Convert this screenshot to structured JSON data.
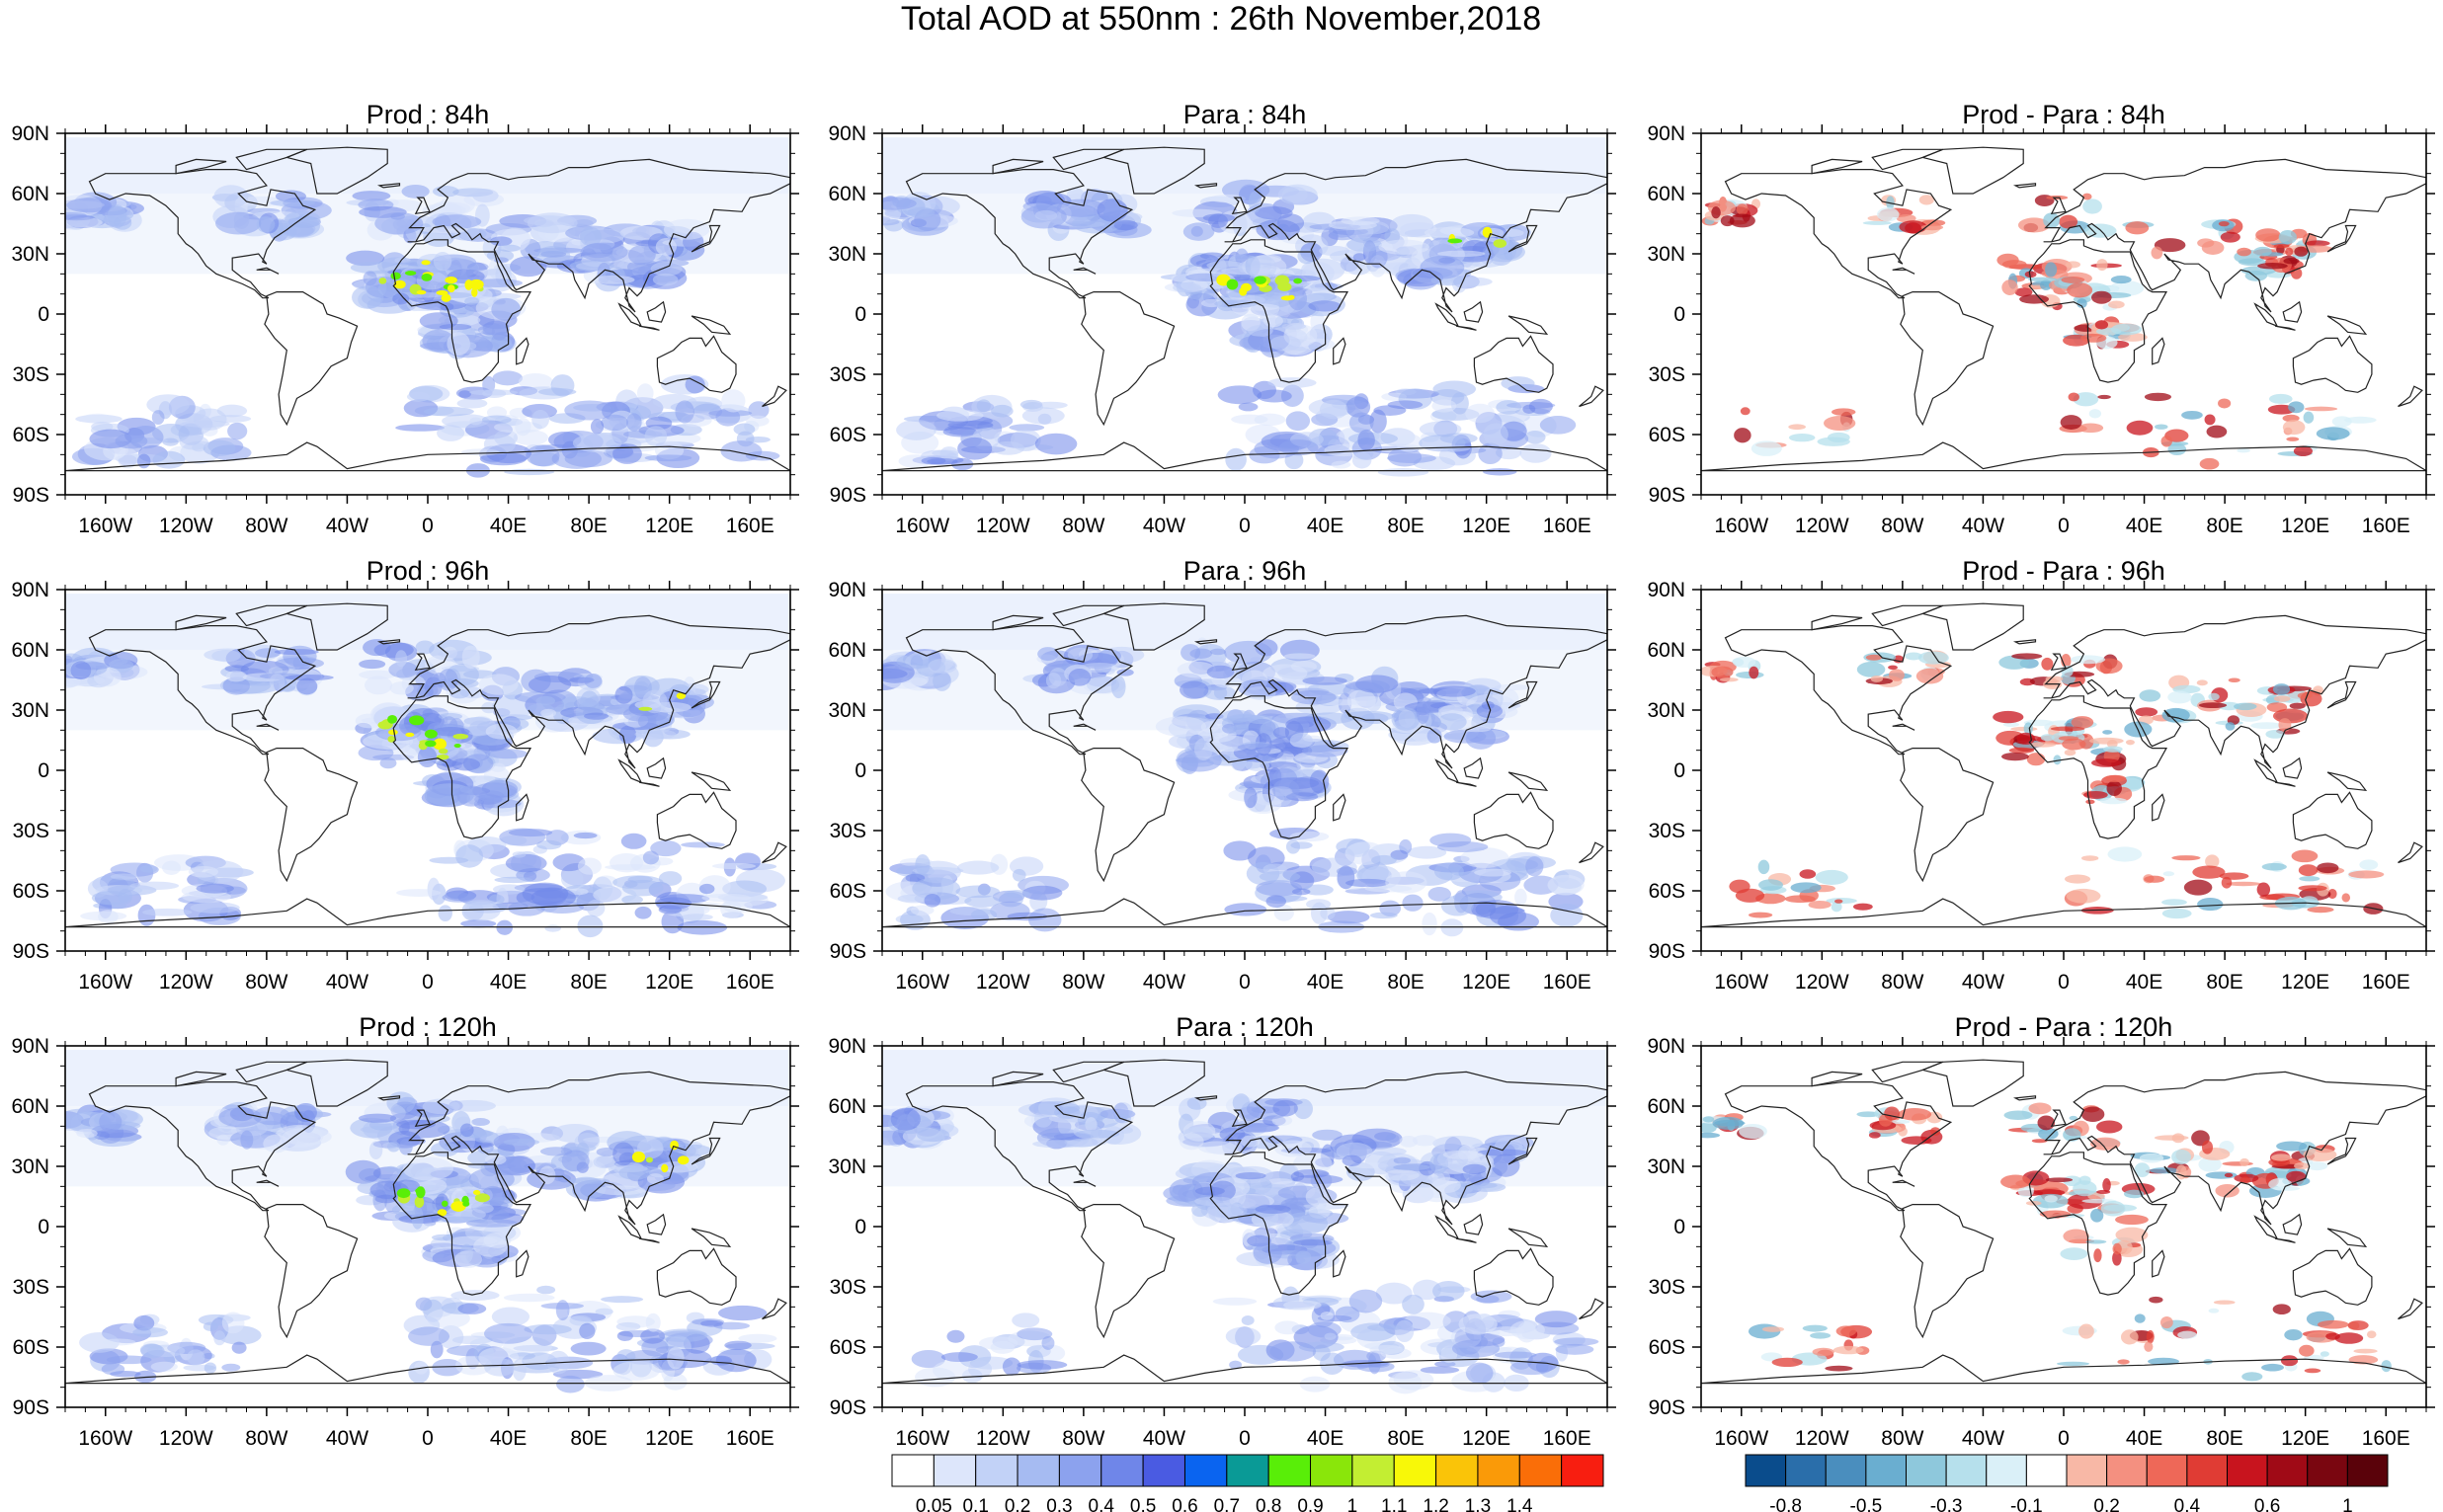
{
  "title": "Total AOD at 550nm : 26th November,2018",
  "lat_labels": [
    "90N",
    "60N",
    "30N",
    "0",
    "30S",
    "60S",
    "90S"
  ],
  "lon_labels": [
    "160W",
    "120W",
    "80W",
    "40W",
    "0",
    "40E",
    "80E",
    "120E",
    "160E"
  ],
  "lon_values": [
    -160,
    -120,
    -80,
    -40,
    0,
    40,
    80,
    120,
    160
  ],
  "lat_values": [
    90,
    60,
    30,
    0,
    -30,
    -60,
    -90
  ],
  "panels": [
    {
      "title": "Prod : 84h",
      "kind": "aod"
    },
    {
      "title": "Para : 84h",
      "kind": "aod"
    },
    {
      "title": "Prod - Para : 84h",
      "kind": "diff"
    },
    {
      "title": "Prod : 96h",
      "kind": "aod"
    },
    {
      "title": "Para : 96h",
      "kind": "aod"
    },
    {
      "title": "Prod - Para : 96h",
      "kind": "diff"
    },
    {
      "title": "Prod : 120h",
      "kind": "aod"
    },
    {
      "title": "Para : 120h",
      "kind": "aod"
    },
    {
      "title": "Prod - Para : 120h",
      "kind": "diff"
    }
  ],
  "aod_colorbar": {
    "labels": [
      "0.05",
      "0.1",
      "0.2",
      "0.3",
      "0.4",
      "0.5",
      "0.6",
      "0.7",
      "0.8",
      "0.9",
      "1",
      "1.1",
      "1.2",
      "1.3",
      "1.4"
    ],
    "colors": [
      "#ffffff",
      "#dde6fb",
      "#c2d2f7",
      "#a6bbf2",
      "#8ca2ee",
      "#6f86e9",
      "#4a5be2",
      "#0a64f0",
      "#0a9a96",
      "#59ee08",
      "#8ae60a",
      "#c3ee32",
      "#f8f808",
      "#fac408",
      "#fa9a08",
      "#fa6e08",
      "#f81e10"
    ]
  },
  "diff_colorbar": {
    "labels": [
      "-0.8",
      "-0.5",
      "-0.3",
      "-0.1",
      "0.2",
      "0.4",
      "0.6",
      "1"
    ],
    "colors": [
      "#0a4c8c",
      "#2a6eaa",
      "#4a8ebe",
      "#6aaed0",
      "#8ec8dc",
      "#b6e0ec",
      "#daf0f8",
      "#ffffff",
      "#f8b8a6",
      "#f49080",
      "#ee6858",
      "#e03c34",
      "#c8141e",
      "#a00a16",
      "#7a0610",
      "#5a020a"
    ]
  }
}
